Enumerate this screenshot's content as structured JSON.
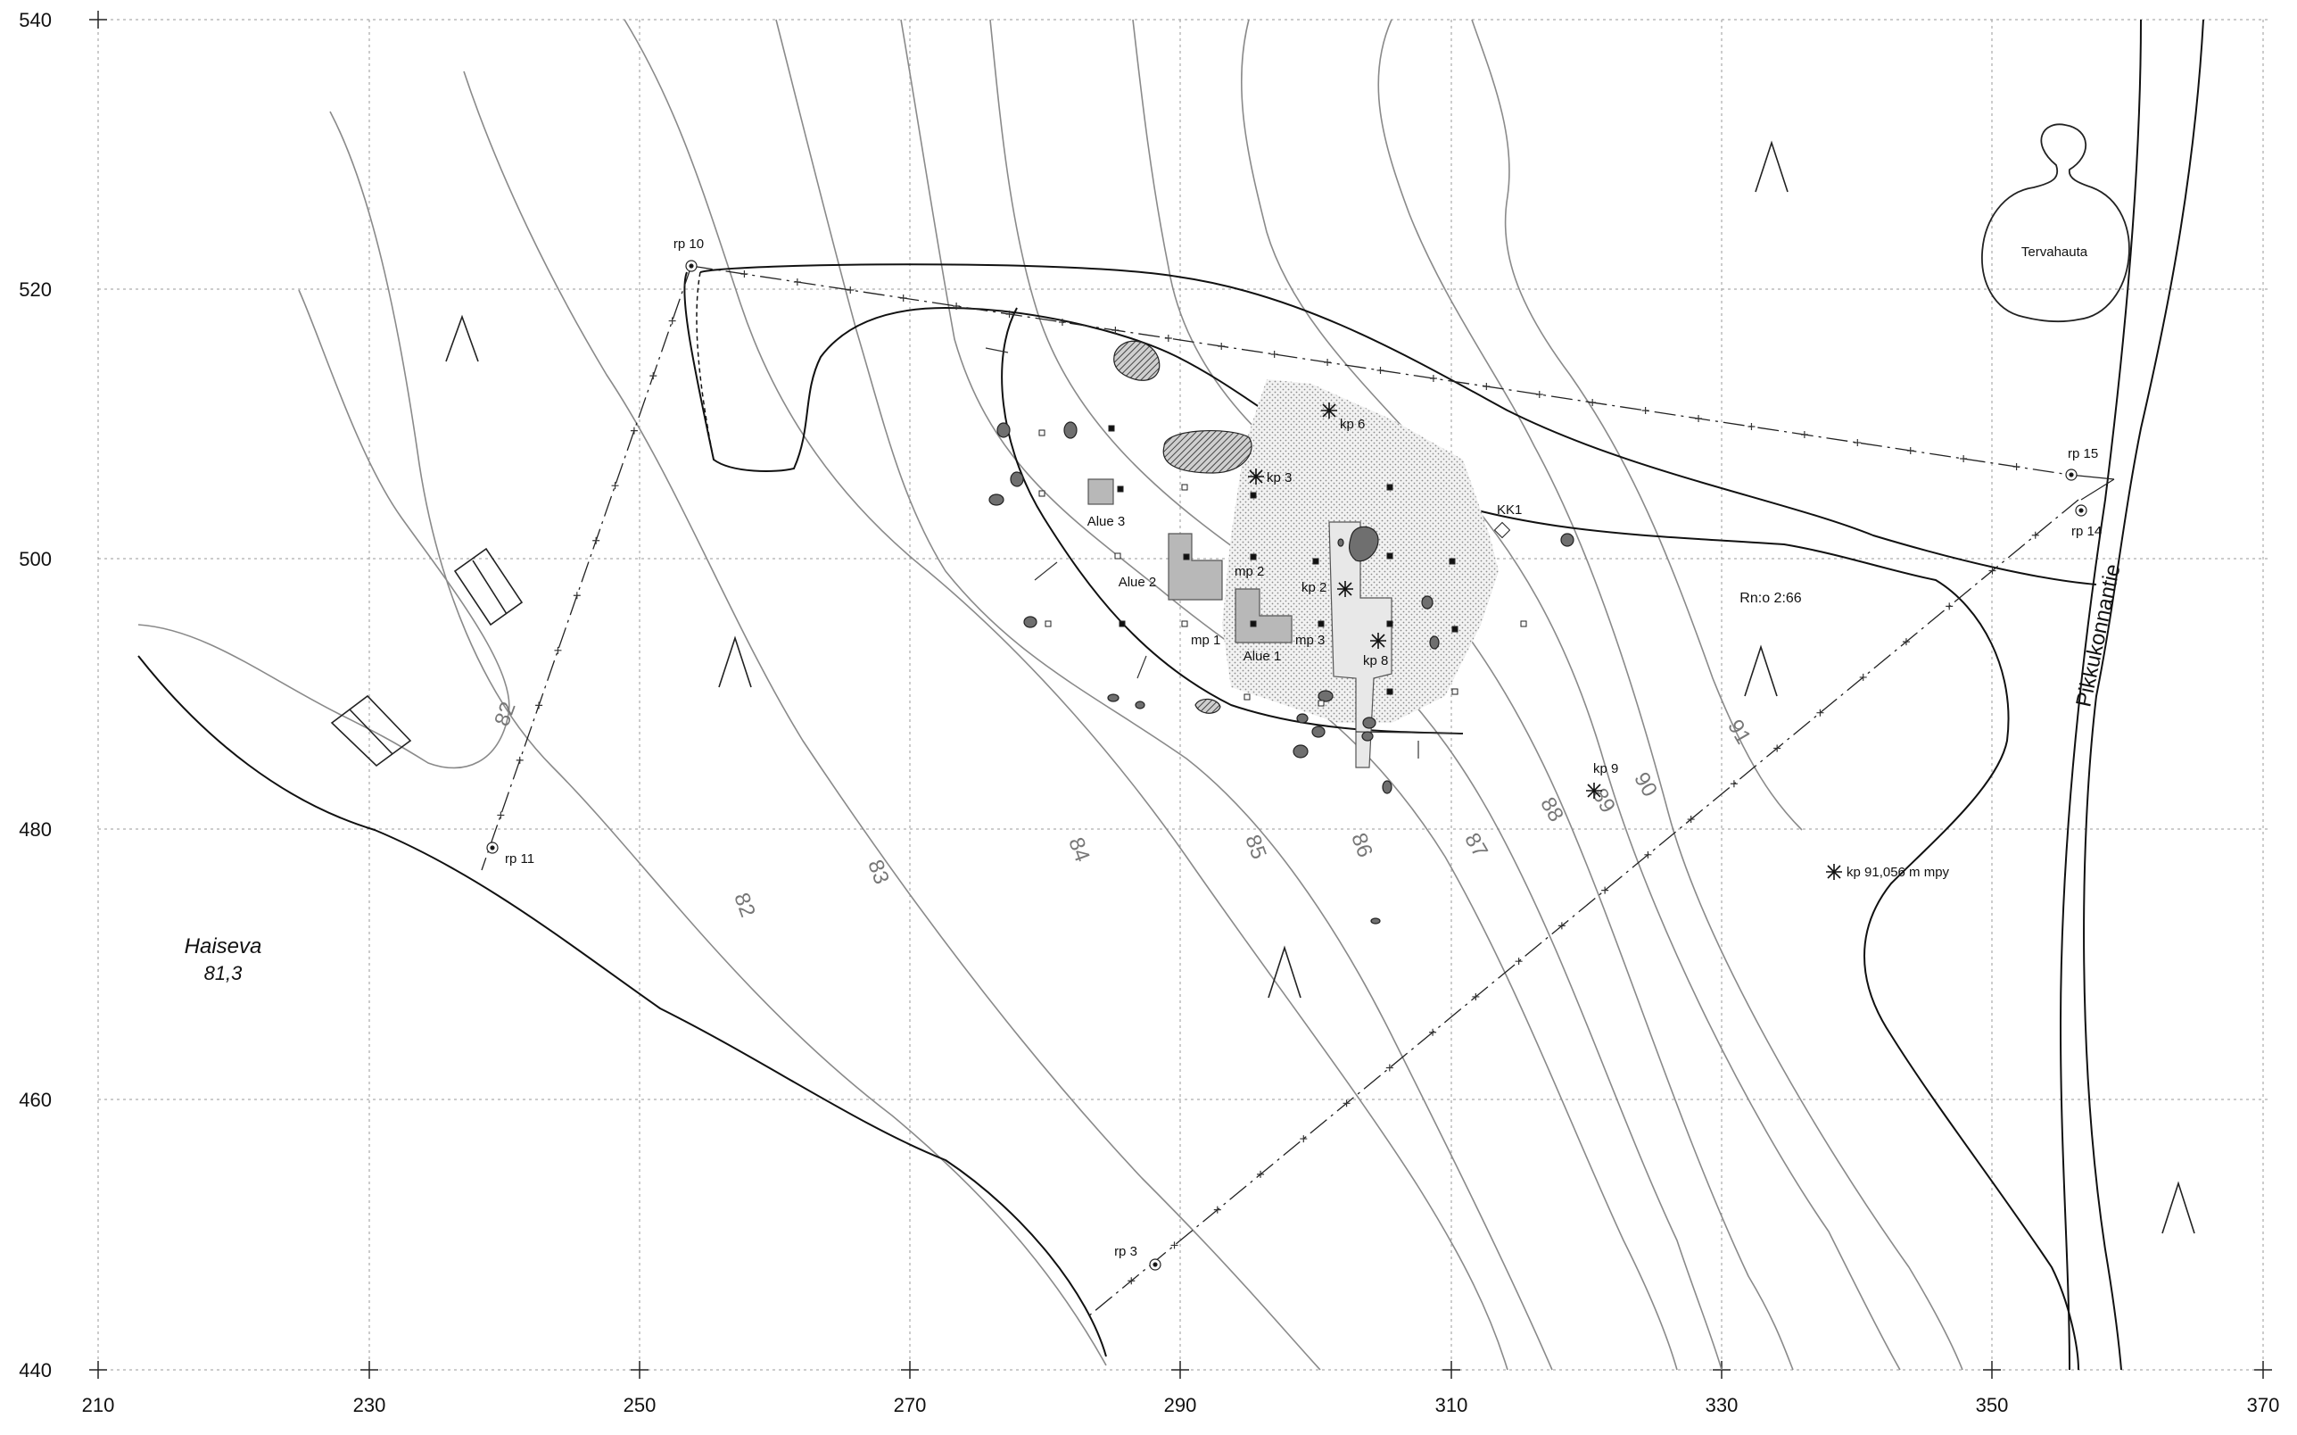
{
  "axes": {
    "x_ticks": [
      "210",
      "230",
      "250",
      "270",
      "290",
      "310",
      "330",
      "350",
      "370"
    ],
    "y_ticks": [
      "540",
      "520",
      "500",
      "480",
      "460",
      "440"
    ]
  },
  "place_names": {
    "lake": "Haiseva",
    "lake_elevation": "81,3",
    "road": "Pikkukonnantie",
    "tar_pit": "Tervahauta",
    "register": "Rn:o 2:66"
  },
  "areas": [
    "Alue 1",
    "Alue 2",
    "Alue 3"
  ],
  "reference_points": [
    "rp 10",
    "rp 11",
    "rp 15",
    "rp 14",
    "rp 3"
  ],
  "control_points": [
    "kp 6",
    "kp 3",
    "kp 2",
    "kp 8",
    "kp 9",
    "kp 91,056 m mpy"
  ],
  "sample_points": [
    "mp 2",
    "mp 1",
    "mp 3"
  ],
  "other_labels": [
    "KK1"
  ],
  "contour_labels": [
    "82",
    "82",
    "83",
    "84",
    "85",
    "86",
    "87",
    "88",
    "89",
    "90",
    "91"
  ],
  "colors": {
    "grid": "#9a9a9a",
    "contour": "#8a8a8a",
    "terrain_edge": "#111111",
    "area_fill": "#b8b8b8",
    "stone_fill": "#6f6f6f"
  }
}
